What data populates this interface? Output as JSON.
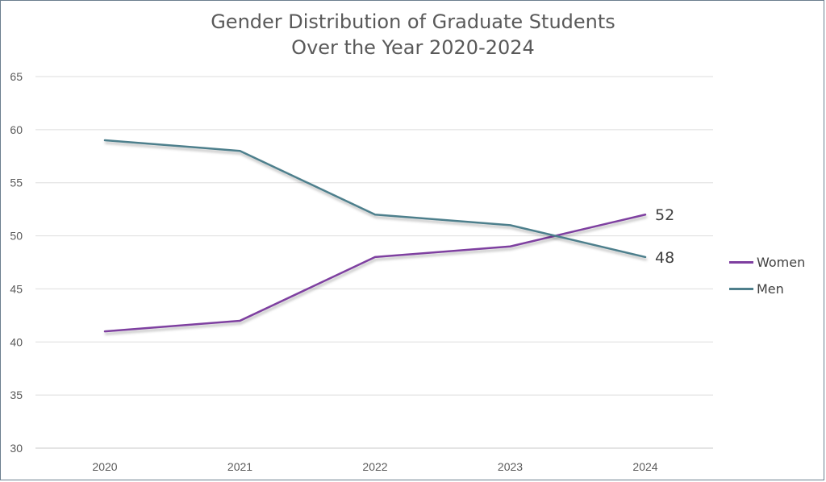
{
  "chart_data": {
    "type": "line",
    "title": [
      "Gender Distribution of Graduate Students",
      "Over the Year 2020-2024"
    ],
    "categories": [
      "2020",
      "2021",
      "2022",
      "2023",
      "2024"
    ],
    "ylim": [
      30,
      65
    ],
    "yticks": [
      30,
      35,
      40,
      45,
      50,
      55,
      60,
      65
    ],
    "grid": true,
    "legend_position": "right",
    "series": [
      {
        "name": "Women",
        "color": "#7e3fa0",
        "values": [
          41,
          42,
          48,
          49,
          52
        ],
        "end_label": "52"
      },
      {
        "name": "Men",
        "color": "#4e7f8c",
        "values": [
          59,
          58,
          52,
          51,
          48
        ],
        "end_label": "48"
      }
    ]
  }
}
